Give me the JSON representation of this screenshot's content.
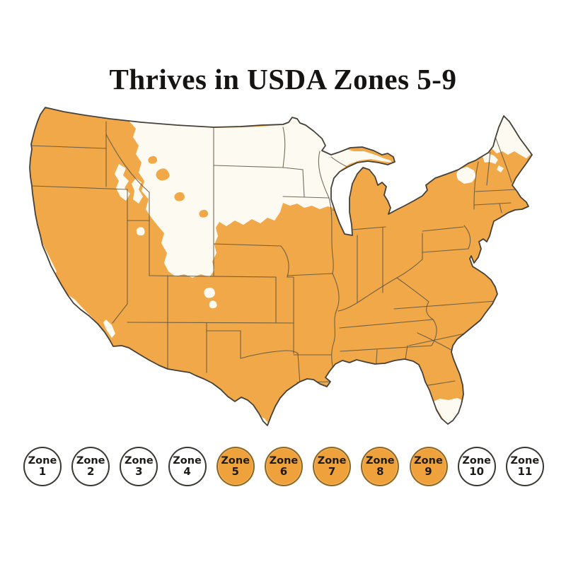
{
  "title": "Thrives in USDA Zones 5-9",
  "map": {
    "name": "usa-hardiness-map",
    "description": "Continental United States map with the areas falling in USDA hardiness zones 5-9 shaded orange; colder northern zones and warmer far-southern zones left white",
    "highlighted_zone_range": "5-9",
    "highlight_color": "#f0a848",
    "base_color": "#ffffff",
    "state_border_color": "#5d5342",
    "outline_color": "#45413a",
    "white_regions": [
      "Montana",
      "North Dakota",
      "Minnesota",
      "Wisconsin",
      "Upper Michigan",
      "Wyoming",
      "Idaho mountains",
      "Colorado mountains",
      "Northern Maine",
      "Northern New York",
      "Southern Florida",
      "Southern Texas tip",
      "Coastal Southern California"
    ]
  },
  "legend": {
    "zones": [
      {
        "label": "Zone",
        "number": "1",
        "active": false
      },
      {
        "label": "Zone",
        "number": "2",
        "active": false
      },
      {
        "label": "Zone",
        "number": "3",
        "active": false
      },
      {
        "label": "Zone",
        "number": "4",
        "active": false
      },
      {
        "label": "Zone",
        "number": "5",
        "active": true
      },
      {
        "label": "Zone",
        "number": "6",
        "active": true
      },
      {
        "label": "Zone",
        "number": "7",
        "active": true
      },
      {
        "label": "Zone",
        "number": "8",
        "active": true
      },
      {
        "label": "Zone",
        "number": "9",
        "active": true
      },
      {
        "label": "Zone",
        "number": "10",
        "active": false
      },
      {
        "label": "Zone",
        "number": "11",
        "active": false
      }
    ],
    "active_fill": "#efa23c",
    "inactive_fill": "#ffffff"
  }
}
